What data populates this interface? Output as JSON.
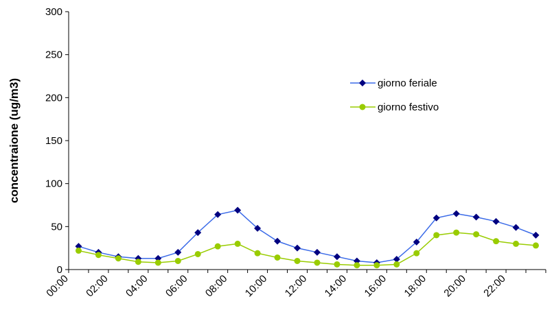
{
  "chart_data": {
    "type": "line",
    "y_label": "concentraione (ug/m3)",
    "categories": [
      "00:00",
      null,
      "02:00",
      null,
      "04:00",
      null,
      "06:00",
      null,
      "08:00",
      null,
      "10:00",
      null,
      "12:00",
      null,
      "14:00",
      null,
      "16:00",
      null,
      "18:00",
      null,
      "20:00",
      null,
      "22:00",
      null
    ],
    "series": [
      {
        "name": "giorno feriale",
        "color": "#3a6ae8",
        "marker_color": "#000080",
        "marker": "diamond",
        "values": [
          27,
          20,
          15,
          13,
          13,
          20,
          43,
          64,
          69,
          48,
          33,
          25,
          20,
          15,
          10,
          8,
          12,
          32,
          60,
          65,
          61,
          56,
          49,
          40
        ]
      },
      {
        "name": "giorno festivo",
        "color": "#99cc00",
        "marker_color": "#99cc00",
        "marker": "circle",
        "values": [
          22,
          17,
          13,
          9,
          8,
          10,
          18,
          27,
          30,
          19,
          14,
          10,
          8,
          6,
          5,
          5,
          6,
          19,
          40,
          43,
          41,
          33,
          30,
          28
        ]
      }
    ],
    "ylim": [
      0,
      300
    ],
    "yticks": [
      0,
      50,
      100,
      150,
      200,
      250,
      300
    ],
    "grid": false,
    "legend": "upper right"
  }
}
